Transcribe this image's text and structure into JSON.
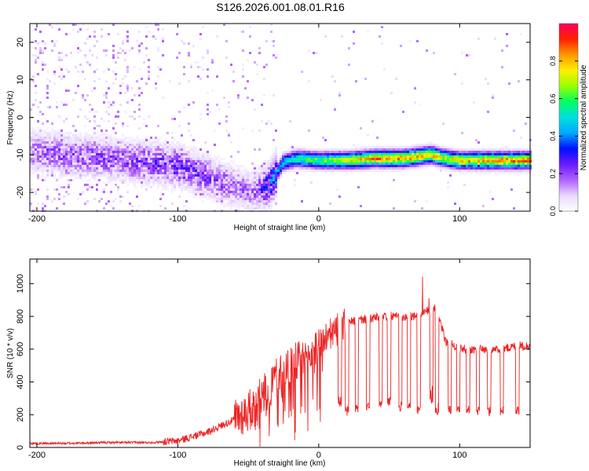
{
  "title": "S126.2026.001.08.01.R16",
  "colors": {
    "snr_line": "#ee2222",
    "axis": "#000000"
  },
  "chart_data": [
    {
      "type": "heatmap",
      "xlabel": "Height of straight line (km)",
      "ylabel": "Frequency (Hz)",
      "xlim": [
        -205,
        150
      ],
      "ylim": [
        -25,
        25
      ],
      "x_ticks": [
        -200,
        -100,
        0,
        100
      ],
      "y_ticks": [
        -20,
        -10,
        0,
        10,
        20
      ],
      "colorbar": {
        "label": "Normalized spectral amplitude",
        "range": [
          0,
          1
        ],
        "ticks": [
          0.0,
          0.2,
          0.4,
          0.6,
          0.8
        ],
        "tick_labels": [
          "0.0",
          "0.2",
          "0.4",
          "0.6",
          "0.8"
        ],
        "colormap": [
          "#ffffff",
          "#e8d8ff",
          "#b060ff",
          "#6a1aff",
          "#0010ff",
          "#00aaff",
          "#00e0e0",
          "#00ff60",
          "#9aff00",
          "#ffee00",
          "#ff9900",
          "#ff2000",
          "#ff0060"
        ]
      },
      "ridge": {
        "x": [
          -205,
          -180,
          -150,
          -120,
          -100,
          -85,
          -70,
          -55,
          -45,
          -35,
          -25,
          -15,
          0,
          20,
          40,
          60,
          80,
          90,
          100,
          120,
          150
        ],
        "y": [
          -9,
          -10,
          -11,
          -12,
          -13,
          -15,
          -17,
          -19,
          -20,
          -18,
          -12,
          -11,
          -11.5,
          -11.5,
          -11,
          -11,
          -10,
          -11,
          -11.5,
          -11.5,
          -11.5
        ],
        "amplitude": [
          0.15,
          0.18,
          0.18,
          0.2,
          0.22,
          0.2,
          0.18,
          0.15,
          0.15,
          0.3,
          0.45,
          0.55,
          0.6,
          0.7,
          0.8,
          0.82,
          0.78,
          0.7,
          0.75,
          0.8,
          0.82
        ]
      }
    },
    {
      "type": "line",
      "xlabel": "Height of straight line (km)",
      "ylabel": "SNR (10 * v/v)",
      "xlim": [
        -205,
        150
      ],
      "ylim": [
        0,
        1150
      ],
      "x_ticks": [
        -200,
        -100,
        0,
        100
      ],
      "y_ticks": [
        0,
        200,
        400,
        600,
        800,
        1000
      ],
      "series": [
        {
          "name": "SNR",
          "x": [
            -205,
            -180,
            -150,
            -120,
            -100,
            -80,
            -60,
            -45,
            -35,
            -25,
            -15,
            -5,
            0,
            10,
            20,
            30,
            40,
            50,
            60,
            70,
            75,
            80,
            85,
            90,
            100,
            110,
            120,
            130,
            140,
            150
          ],
          "y": [
            25,
            25,
            30,
            30,
            40,
            90,
            170,
            250,
            380,
            480,
            520,
            560,
            640,
            700,
            760,
            780,
            790,
            800,
            800,
            800,
            820,
            850,
            800,
            650,
            600,
            600,
            600,
            600,
            620,
            620
          ],
          "dips": [
            {
              "x": 15,
              "y": 280
            },
            {
              "x": 20,
              "y": 220
            },
            {
              "x": 27,
              "y": 240
            },
            {
              "x": 35,
              "y": 250
            },
            {
              "x": 44,
              "y": 260
            },
            {
              "x": 50,
              "y": 280
            },
            {
              "x": 58,
              "y": 250
            },
            {
              "x": 64,
              "y": 260
            },
            {
              "x": 71,
              "y": 230
            },
            {
              "x": 80,
              "y": 300
            },
            {
              "x": 84,
              "y": 220
            },
            {
              "x": 93,
              "y": 230
            },
            {
              "x": 99,
              "y": 240
            },
            {
              "x": 106,
              "y": 230
            },
            {
              "x": 113,
              "y": 220
            },
            {
              "x": 121,
              "y": 220
            },
            {
              "x": 130,
              "y": 220
            },
            {
              "x": 141,
              "y": 230
            }
          ]
        }
      ]
    }
  ]
}
